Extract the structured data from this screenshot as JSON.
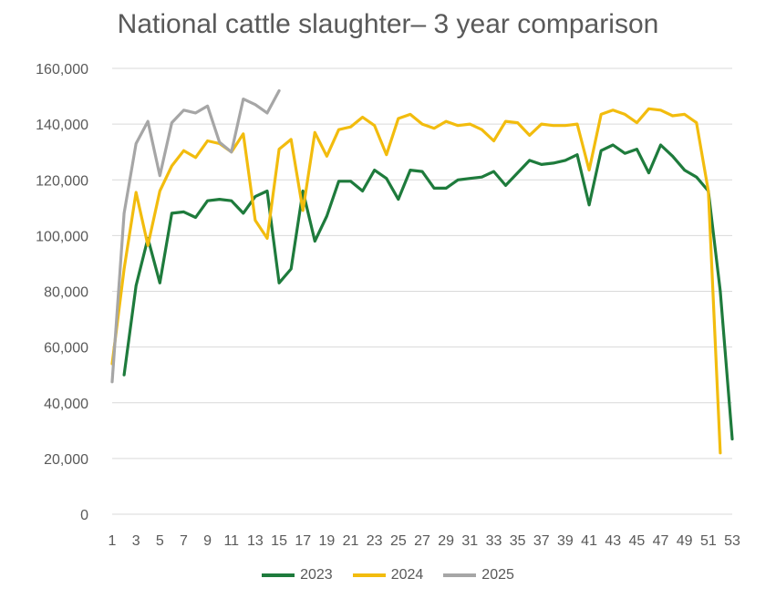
{
  "chart_data": {
    "type": "line",
    "title": "National cattle slaughter– 3 year comparison",
    "xlabel": "",
    "ylabel": "",
    "ylim": [
      0,
      160000
    ],
    "xlim": [
      1,
      53
    ],
    "y_ticks": [
      "0",
      "20,000",
      "40,000",
      "60,000",
      "80,000",
      "100,000",
      "120,000",
      "140,000",
      "160,000"
    ],
    "x_ticks": [
      "1",
      "3",
      "5",
      "7",
      "9",
      "11",
      "13",
      "15",
      "17",
      "19",
      "21",
      "23",
      "25",
      "27",
      "29",
      "31",
      "33",
      "35",
      "37",
      "39",
      "41",
      "43",
      "45",
      "47",
      "49",
      "51",
      "53"
    ],
    "grid": true,
    "legend_position": "bottom",
    "series": [
      {
        "name": "2023",
        "color": "#1e7b3c",
        "x": [
          2,
          3,
          4,
          5,
          6,
          7,
          8,
          9,
          10,
          11,
          12,
          13,
          14,
          15,
          16,
          17,
          18,
          19,
          20,
          21,
          22,
          23,
          24,
          25,
          26,
          27,
          28,
          29,
          30,
          31,
          32,
          33,
          34,
          35,
          36,
          37,
          38,
          39,
          40,
          41,
          42,
          43,
          44,
          45,
          46,
          47,
          48,
          49,
          50,
          51,
          52,
          53
        ],
        "values": [
          50000,
          82000,
          99000,
          83000,
          108000,
          108500,
          106500,
          112500,
          113000,
          112500,
          108000,
          114000,
          116000,
          83000,
          88000,
          116000,
          98000,
          107000,
          119500,
          119500,
          116000,
          123500,
          120500,
          113000,
          123500,
          123000,
          117000,
          117000,
          120000,
          120500,
          121000,
          123000,
          118000,
          122500,
          127000,
          125500,
          126000,
          127000,
          129000,
          111000,
          130500,
          132500,
          129500,
          131000,
          122500,
          132500,
          128500,
          123500,
          121000,
          116000,
          80000,
          27000
        ]
      },
      {
        "name": "2024",
        "color": "#f2bc0e",
        "x": [
          1,
          2,
          3,
          4,
          5,
          6,
          7,
          8,
          9,
          10,
          11,
          12,
          13,
          14,
          15,
          16,
          17,
          18,
          19,
          20,
          21,
          22,
          23,
          24,
          25,
          26,
          27,
          28,
          29,
          30,
          31,
          32,
          33,
          34,
          35,
          36,
          37,
          38,
          39,
          40,
          41,
          42,
          43,
          44,
          45,
          46,
          47,
          48,
          49,
          50,
          51,
          52
        ],
        "values": [
          54000,
          88000,
          115500,
          96500,
          116000,
          125000,
          130500,
          128000,
          134000,
          133000,
          130000,
          136500,
          105500,
          99000,
          131000,
          134500,
          109000,
          137000,
          128500,
          138000,
          139000,
          142500,
          139500,
          129000,
          142000,
          143500,
          140000,
          138500,
          141000,
          139500,
          140000,
          138000,
          134000,
          141000,
          140500,
          136000,
          140000,
          139500,
          139500,
          140000,
          123500,
          143500,
          145000,
          143500,
          140500,
          145500,
          145000,
          143000,
          143500,
          140500,
          116000,
          22000
        ]
      },
      {
        "name": "2025",
        "color": "#a6a6a6",
        "x": [
          1,
          2,
          3,
          4,
          5,
          6,
          7,
          8,
          9,
          10,
          11,
          12,
          13,
          14,
          15
        ],
        "values": [
          47500,
          108000,
          133000,
          141000,
          121500,
          140500,
          145000,
          144000,
          146500,
          133500,
          130000,
          149000,
          147000,
          144000,
          152000
        ]
      }
    ]
  }
}
